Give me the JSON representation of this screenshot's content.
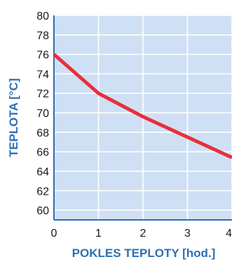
{
  "chart_data": {
    "type": "line",
    "title": "",
    "xlabel": "POKLES TEPLOTY [hod.]",
    "ylabel": "TEPLOTA [°C]",
    "xlim": [
      0,
      4
    ],
    "ylim": [
      59,
      80
    ],
    "x_ticks": [
      "0",
      "1",
      "2",
      "3",
      "4"
    ],
    "y_ticks": [
      "60",
      "62",
      "64",
      "66",
      "68",
      "70",
      "72",
      "74",
      "76",
      "78",
      "80"
    ],
    "grid": true,
    "legend": "none",
    "series": [
      {
        "x": [
          0,
          1,
          2,
          3,
          4
        ],
        "values": [
          76,
          72,
          69.6,
          67.5,
          65.4
        ],
        "color": "#e8303a"
      }
    ]
  },
  "colors": {
    "plot_background": "#cfe0f5",
    "grid": "#ffffff",
    "axis": "#2e6fb4",
    "title_text": "#2e6fb4",
    "line": "#e8303a"
  }
}
